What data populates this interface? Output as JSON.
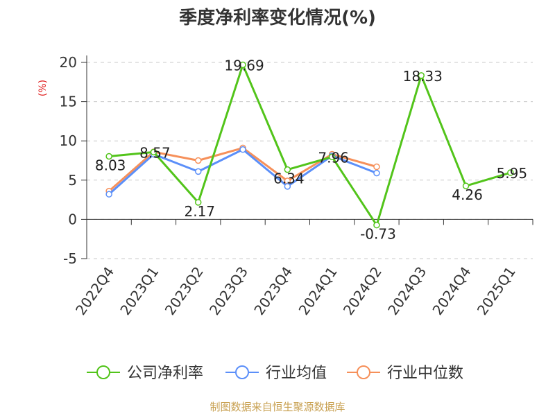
{
  "chart_data": {
    "type": "line",
    "title": "季度净利率变化情况(%)",
    "ylabel": "(%)",
    "ylabel_color": "#e02020",
    "ylim": [
      -5,
      20
    ],
    "yticks": [
      -5,
      0,
      5,
      10,
      15,
      20
    ],
    "grid": true,
    "categories": [
      "2022Q4",
      "2023Q1",
      "2023Q2",
      "2023Q3",
      "2023Q4",
      "2024Q1",
      "2024Q2",
      "2024Q3",
      "2024Q4",
      "2025Q1"
    ],
    "series": [
      {
        "name": "公司净利率",
        "color": "#52c41a",
        "values": [
          8.03,
          8.57,
          2.17,
          19.69,
          6.34,
          7.96,
          -0.73,
          18.33,
          4.26,
          5.95
        ],
        "labels": [
          "8.03",
          "8.57",
          "2.17",
          "19.69",
          "6.34",
          "7.96",
          "-0.73",
          "18.33",
          "4.26",
          "5.95"
        ]
      },
      {
        "name": "行业均值",
        "color": "#5b8ff9",
        "values": [
          3.2,
          8.3,
          6.1,
          8.9,
          4.2,
          8.1,
          5.9,
          null,
          null,
          null
        ]
      },
      {
        "name": "行业中位数",
        "color": "#f6905a",
        "values": [
          3.6,
          8.6,
          7.5,
          9.1,
          4.9,
          8.3,
          6.7,
          null,
          null,
          null
        ]
      }
    ],
    "legend_position": "bottom",
    "source": "制图数据来自恒生聚源数据库",
    "source_color": "#c8a050"
  }
}
